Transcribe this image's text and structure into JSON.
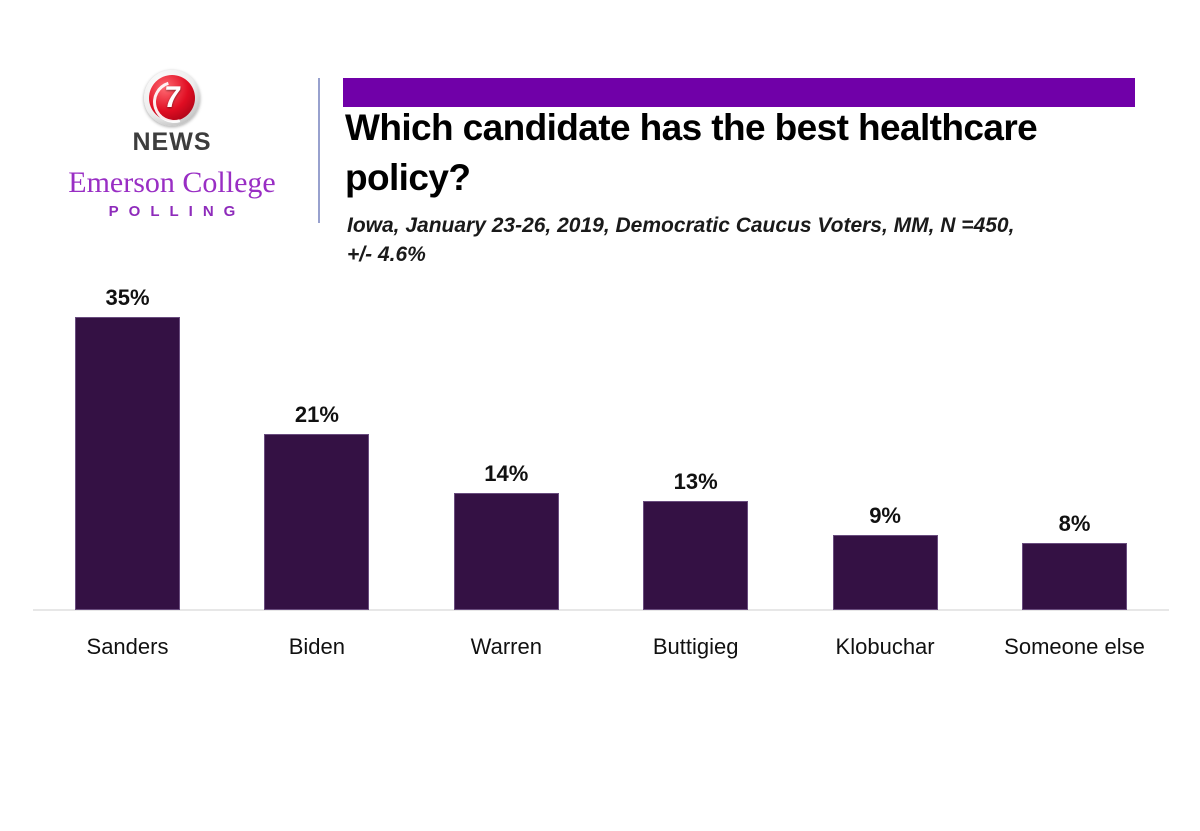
{
  "branding": {
    "station_number": "7",
    "station_name": "NEWS",
    "org_name": "Emerson College",
    "org_unit": "POLLING"
  },
  "header": {
    "title": "Which candidate has the best healthcare policy?",
    "title_line1": "Which candidate has the best healthcare",
    "title_line2": "policy?",
    "subtitle_line1": "Iowa, January 23-26, 2019, Democratic Caucus Voters, MM, N =450,",
    "subtitle_line2": "+/- 4.6%"
  },
  "colors": {
    "accent_bar": "#7000a8",
    "bar_fill": "#341144",
    "emerson_purple": "#992ec4",
    "polling_purple": "#8e2bbb",
    "divider": "#98a1ce",
    "axis_line": "#e7e7e7",
    "news_red": "#d0021b"
  },
  "chart_data": {
    "type": "bar",
    "title": "Which candidate has the best healthcare policy?",
    "subtitle": "Iowa, January 23-26, 2019, Democratic Caucus Voters, MM, N =450, +/- 4.6%",
    "categories": [
      "Sanders",
      "Biden",
      "Warren",
      "Buttigieg",
      "Klobuchar",
      "Someone else"
    ],
    "values": [
      35,
      21,
      14,
      13,
      9,
      8
    ],
    "value_labels": [
      "35%",
      "21%",
      "14%",
      "13%",
      "9%",
      "8%"
    ],
    "unit": "%",
    "bar_color": "#341144",
    "ylim": [
      0,
      37
    ],
    "grid": false,
    "legend": false,
    "data_labels_position": "above-bars",
    "x_axis_labels_position": "below-baseline"
  }
}
